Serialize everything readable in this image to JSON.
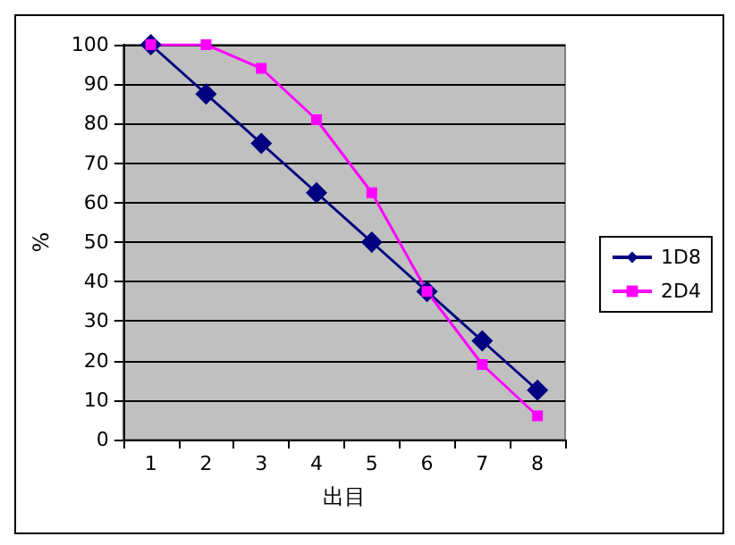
{
  "chart_data": {
    "type": "line",
    "xlabel": "出目",
    "ylabel": "%",
    "categories": [
      "1",
      "2",
      "3",
      "4",
      "5",
      "6",
      "7",
      "8"
    ],
    "series": [
      {
        "name": "1D8",
        "color": "#000080",
        "marker": "diamond",
        "values": [
          100,
          87.5,
          75,
          62.5,
          50,
          37.5,
          25,
          12.5
        ]
      },
      {
        "name": "2D4",
        "color": "#ff00ff",
        "marker": "square",
        "values": [
          100,
          100,
          94,
          81,
          62.5,
          37.5,
          19,
          6
        ]
      }
    ],
    "ylim": [
      0,
      100
    ],
    "yticks": [
      0,
      10,
      20,
      30,
      40,
      50,
      60,
      70,
      80,
      90,
      100
    ],
    "grid": "y",
    "legend": "right"
  }
}
